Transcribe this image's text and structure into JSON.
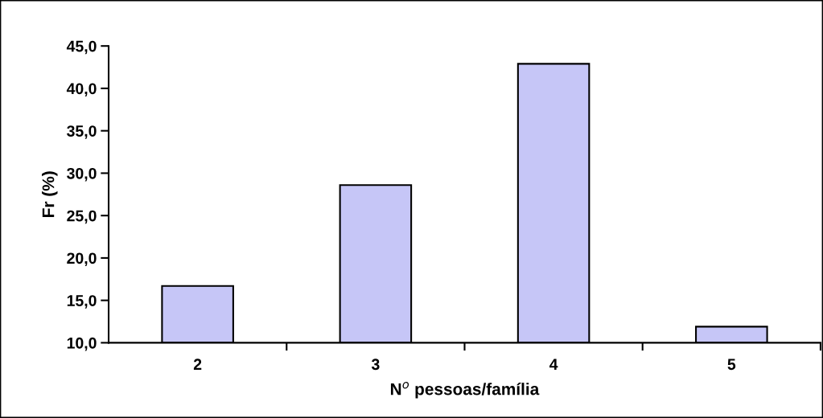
{
  "chart_data": {
    "type": "bar",
    "xlabel": "N$^{o}$ pessoas/família",
    "ylabel": "Fr (%)",
    "categories": [
      "2",
      "3",
      "4",
      "5"
    ],
    "values": [
      16.7,
      28.6,
      42.9,
      11.9
    ],
    "color": "#c6c6f7",
    "ylim": [
      10,
      45
    ],
    "yticks": [
      {
        "value": 10,
        "label": "10,0"
      },
      {
        "value": 15,
        "label": "15,0"
      },
      {
        "value": 20,
        "label": "20,0"
      },
      {
        "value": 25,
        "label": "25,0"
      },
      {
        "value": 30,
        "label": "30,0"
      },
      {
        "value": 35,
        "label": "35,0"
      },
      {
        "value": 40,
        "label": "40,0"
      },
      {
        "value": 45,
        "label": "45,0"
      }
    ],
    "grid": false,
    "legend": false
  }
}
